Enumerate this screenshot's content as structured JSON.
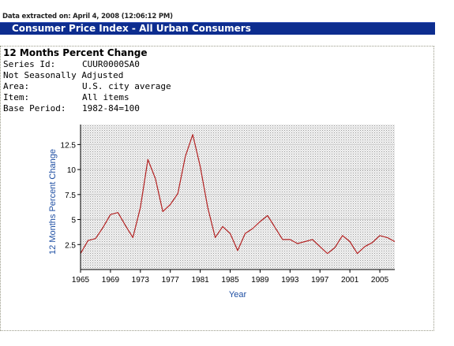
{
  "extraction_note": "Data extracted on: April 4, 2008 (12:06:12 PM)",
  "banner_title": "Consumer Price Index - All Urban Consumers",
  "section_title": "12 Months Percent Change",
  "metadata": [
    {
      "label": "Series Id:",
      "value": "CUUR0000SA0"
    },
    {
      "label": "Not Seasonally Adjusted",
      "value": ""
    },
    {
      "label": "Area:",
      "value": "U.S. city average"
    },
    {
      "label": "Item:",
      "value": "All items"
    },
    {
      "label": "Base Period:",
      "value": "1982-84=100"
    }
  ],
  "colors": {
    "banner": "#0d2d8f",
    "line": "#b22222",
    "axis_title": "#1f4fa3"
  },
  "chart_data": {
    "type": "line",
    "title": "",
    "xlabel": "Year",
    "ylabel": "12 Months Percent Change",
    "xlim": [
      1965,
      2007
    ],
    "ylim": [
      0,
      14.5
    ],
    "xticks": [
      "1965",
      "1969",
      "1973",
      "1977",
      "1981",
      "1985",
      "1989",
      "1993",
      "1997",
      "2001",
      "2005"
    ],
    "yticks": [
      "2.5",
      "5",
      "7.5",
      "10",
      "12.5"
    ],
    "grid": true,
    "series": [
      {
        "x": [
          1965,
          1966,
          1967,
          1968,
          1969,
          1970,
          1971,
          1972,
          1973,
          1974,
          1975,
          1976,
          1977,
          1978,
          1979,
          1980,
          1981,
          1982,
          1983,
          1984,
          1985,
          1986,
          1987,
          1988,
          1989,
          1990,
          1991,
          1992,
          1993,
          1994,
          1995,
          1996,
          1997,
          1998,
          1999,
          2000,
          2001,
          2002,
          2003,
          2004,
          2005,
          2006,
          2007
        ],
        "values": [
          1.6,
          2.9,
          3.1,
          4.2,
          5.5,
          5.7,
          4.4,
          3.2,
          6.2,
          11.0,
          9.1,
          5.8,
          6.5,
          7.6,
          11.3,
          13.5,
          10.3,
          6.2,
          3.2,
          4.3,
          3.6,
          1.9,
          3.6,
          4.1,
          4.8,
          5.4,
          4.2,
          3.0,
          3.0,
          2.6,
          2.8,
          3.0,
          2.3,
          1.6,
          2.2,
          3.4,
          2.8,
          1.6,
          2.3,
          2.7,
          3.4,
          3.2,
          2.8
        ]
      }
    ]
  }
}
